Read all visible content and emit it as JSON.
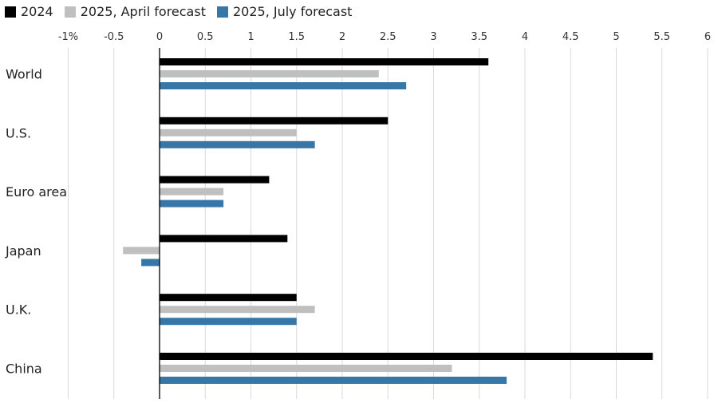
{
  "chart_data": {
    "type": "bar",
    "orientation": "horizontal",
    "categories": [
      "World",
      "U.S.",
      "Euro area",
      "Japan",
      "U.K.",
      "China"
    ],
    "series": [
      {
        "name": "2024",
        "color": "#000000",
        "values": [
          3.6,
          2.5,
          1.2,
          1.4,
          1.5,
          5.4
        ]
      },
      {
        "name": "2025, April forecast",
        "color": "#bfbfbf",
        "values": [
          2.4,
          1.5,
          0.7,
          -0.4,
          1.7,
          3.2
        ]
      },
      {
        "name": "2025, July forecast",
        "color": "#3777a8",
        "values": [
          2.7,
          1.7,
          0.7,
          -0.2,
          1.5,
          3.8
        ]
      }
    ],
    "xlim": [
      -1,
      6
    ],
    "ticks": [
      -1,
      -0.5,
      0,
      0.5,
      1,
      1.5,
      2,
      2.5,
      3,
      3.5,
      4,
      4.5,
      5,
      5.5,
      6
    ],
    "tick_labels": [
      "-1%",
      "-0.5",
      "0",
      "0.5",
      "1",
      "1.5",
      "2",
      "2.5",
      "3",
      "3.5",
      "4",
      "4.5",
      "5",
      "5.5",
      "6"
    ],
    "grid": true,
    "legend": "top-left",
    "gridline_color": "#d9d9d9",
    "zero_line_color": "#000000"
  }
}
